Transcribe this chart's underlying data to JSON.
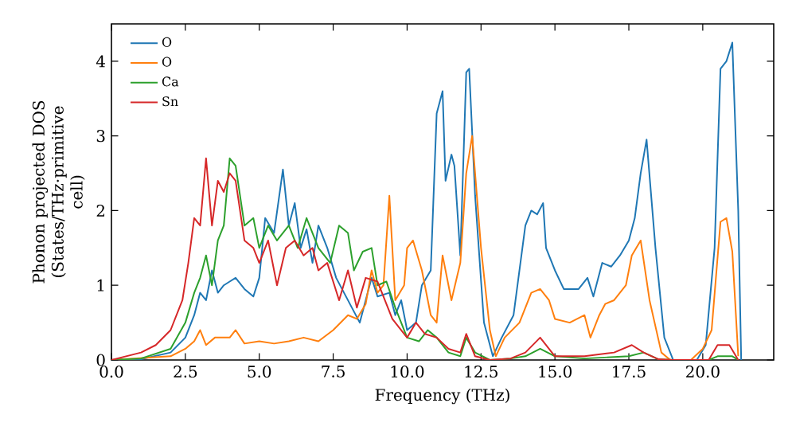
{
  "chart_data": {
    "type": "line",
    "xlabel": "Frequency (THz)",
    "ylabel": "Phonon projected DOS (States/THz·primitive cell)",
    "xlim": [
      0,
      22.4
    ],
    "ylim": [
      0,
      4.5
    ],
    "xticks": [
      {
        "value": 0,
        "label": "0.0"
      },
      {
        "value": 2.5,
        "label": "2.5"
      },
      {
        "value": 5,
        "label": "5.0"
      },
      {
        "value": 7.5,
        "label": "7.5"
      },
      {
        "value": 10,
        "label": "10.0"
      },
      {
        "value": 12.5,
        "label": "12.5"
      },
      {
        "value": 15,
        "label": "15.0"
      },
      {
        "value": 17.5,
        "label": "17.5"
      },
      {
        "value": 20,
        "label": "20.0"
      }
    ],
    "yticks": [
      0,
      1,
      2,
      3,
      4
    ],
    "legend": "top left",
    "grid": false,
    "line_style": "solid",
    "series": [
      {
        "name": "O",
        "color": "#1f77b4",
        "x": [
          0,
          1,
          2,
          2.5,
          2.8,
          3.0,
          3.2,
          3.4,
          3.6,
          3.8,
          4.0,
          4.2,
          4.5,
          4.8,
          5.0,
          5.2,
          5.5,
          5.8,
          6.0,
          6.2,
          6.4,
          6.6,
          6.8,
          7.0,
          7.3,
          7.6,
          8.0,
          8.4,
          8.8,
          9.0,
          9.4,
          9.6,
          9.8,
          10.0,
          10.3,
          10.5,
          10.8,
          11.0,
          11.2,
          11.3,
          11.5,
          11.6,
          11.8,
          12.0,
          12.1,
          12.3,
          12.6,
          12.9,
          13.2,
          13.6,
          14.0,
          14.2,
          14.4,
          14.6,
          14.7,
          15.0,
          15.3,
          15.8,
          16.1,
          16.3,
          16.6,
          16.9,
          17.2,
          17.5,
          17.7,
          17.9,
          18.1,
          18.4,
          18.7,
          19.0,
          19.8,
          20.1,
          20.4,
          20.6,
          20.8,
          21.0,
          21.2,
          21.3
        ],
        "values": [
          0,
          0.01,
          0.1,
          0.3,
          0.6,
          0.9,
          0.8,
          1.2,
          0.9,
          1.0,
          1.05,
          1.1,
          0.95,
          0.85,
          1.1,
          1.9,
          1.7,
          2.55,
          1.8,
          2.1,
          1.5,
          1.75,
          1.3,
          1.8,
          1.5,
          1.1,
          0.8,
          0.5,
          1.1,
          0.85,
          0.9,
          0.6,
          0.8,
          0.4,
          0.5,
          1.0,
          1.2,
          3.3,
          3.6,
          2.4,
          2.75,
          2.6,
          1.4,
          3.85,
          3.9,
          2.2,
          0.5,
          0.05,
          0.3,
          0.6,
          1.8,
          2.0,
          1.95,
          2.1,
          1.5,
          1.2,
          0.95,
          0.95,
          1.1,
          0.85,
          1.3,
          1.25,
          1.4,
          1.6,
          1.9,
          2.5,
          2.95,
          1.5,
          0.3,
          0,
          0,
          0.2,
          1.5,
          3.9,
          4.0,
          4.25,
          2.0,
          0
        ]
      },
      {
        "name": "O",
        "color": "#ff7f0e",
        "x": [
          0,
          2,
          2.5,
          2.8,
          3.0,
          3.2,
          3.5,
          4.0,
          4.2,
          4.5,
          5.0,
          5.5,
          6.0,
          6.5,
          7.0,
          7.5,
          8.0,
          8.3,
          8.6,
          8.8,
          9.0,
          9.2,
          9.4,
          9.6,
          9.9,
          10.0,
          10.2,
          10.5,
          10.8,
          11.0,
          11.2,
          11.5,
          11.8,
          12.0,
          12.2,
          12.5,
          12.8,
          13.0,
          13.3,
          13.8,
          14.2,
          14.5,
          14.8,
          15.0,
          15.5,
          16.0,
          16.2,
          16.5,
          16.7,
          17.0,
          17.4,
          17.6,
          17.9,
          18.2,
          18.6,
          18.9,
          19.6,
          20.0,
          20.3,
          20.6,
          20.8,
          21.0,
          21.2
        ],
        "values": [
          0,
          0.05,
          0.15,
          0.25,
          0.4,
          0.2,
          0.3,
          0.3,
          0.4,
          0.22,
          0.25,
          0.22,
          0.25,
          0.3,
          0.25,
          0.4,
          0.6,
          0.55,
          0.75,
          1.2,
          0.9,
          1.0,
          2.2,
          0.8,
          1.0,
          1.5,
          1.6,
          1.2,
          0.6,
          0.5,
          1.4,
          0.8,
          1.3,
          2.5,
          3.0,
          1.5,
          0.4,
          0.05,
          0.3,
          0.5,
          0.9,
          0.95,
          0.8,
          0.55,
          0.5,
          0.6,
          0.3,
          0.6,
          0.75,
          0.8,
          1.0,
          1.4,
          1.6,
          0.8,
          0.1,
          0,
          0,
          0.15,
          0.4,
          1.85,
          1.9,
          1.45,
          0.05
        ]
      },
      {
        "name": "Ca",
        "color": "#2ca02c",
        "x": [
          0,
          1,
          2,
          2.5,
          2.8,
          3.0,
          3.2,
          3.4,
          3.6,
          3.8,
          4.0,
          4.2,
          4.5,
          4.8,
          5.0,
          5.3,
          5.6,
          6.0,
          6.3,
          6.6,
          7.0,
          7.4,
          7.7,
          8.0,
          8.2,
          8.5,
          8.8,
          9.0,
          9.3,
          9.6,
          10.0,
          10.4,
          10.7,
          11.0,
          11.4,
          11.8,
          12.0,
          12.3,
          12.8,
          13.5,
          14.0,
          14.5,
          15.0,
          16.0,
          17.5,
          18.0,
          18.5,
          19.0,
          20.2,
          20.5,
          21.0,
          21.2
        ],
        "values": [
          0,
          0.02,
          0.15,
          0.5,
          0.9,
          1.1,
          1.4,
          1.0,
          1.6,
          1.8,
          2.7,
          2.6,
          1.8,
          1.9,
          1.5,
          1.8,
          1.6,
          1.8,
          1.5,
          1.9,
          1.5,
          1.3,
          1.8,
          1.7,
          1.2,
          1.45,
          1.5,
          1.0,
          1.05,
          0.7,
          0.3,
          0.25,
          0.4,
          0.3,
          0.1,
          0.05,
          0.3,
          0.1,
          0,
          0.02,
          0.05,
          0.15,
          0.05,
          0.02,
          0.05,
          0.1,
          0.01,
          0,
          0,
          0.05,
          0.05,
          0
        ]
      },
      {
        "name": "Sn",
        "color": "#d62728",
        "x": [
          0,
          1,
          1.5,
          2.0,
          2.4,
          2.6,
          2.8,
          3.0,
          3.2,
          3.4,
          3.6,
          3.8,
          4.0,
          4.2,
          4.5,
          4.8,
          5.0,
          5.3,
          5.6,
          5.9,
          6.2,
          6.5,
          6.8,
          7.0,
          7.3,
          7.7,
          8.0,
          8.3,
          8.6,
          9.0,
          9.5,
          10.0,
          10.3,
          10.6,
          11.0,
          11.4,
          11.8,
          12.0,
          12.3,
          12.8,
          13.5,
          14.0,
          14.5,
          15.0,
          16.0,
          17.0,
          17.6,
          18.0,
          18.5,
          19.0,
          20.2,
          20.5,
          20.9,
          21.2
        ],
        "values": [
          0,
          0.1,
          0.2,
          0.4,
          0.8,
          1.3,
          1.9,
          1.8,
          2.7,
          1.8,
          2.4,
          2.25,
          2.5,
          2.4,
          1.6,
          1.5,
          1.3,
          1.6,
          1.0,
          1.5,
          1.6,
          1.4,
          1.5,
          1.2,
          1.3,
          0.8,
          1.2,
          0.7,
          1.1,
          1.05,
          0.55,
          0.3,
          0.5,
          0.35,
          0.3,
          0.15,
          0.1,
          0.35,
          0.05,
          0,
          0.02,
          0.1,
          0.3,
          0.05,
          0.05,
          0.1,
          0.2,
          0.1,
          0.01,
          0,
          0,
          0.2,
          0.2,
          0
        ]
      }
    ]
  }
}
